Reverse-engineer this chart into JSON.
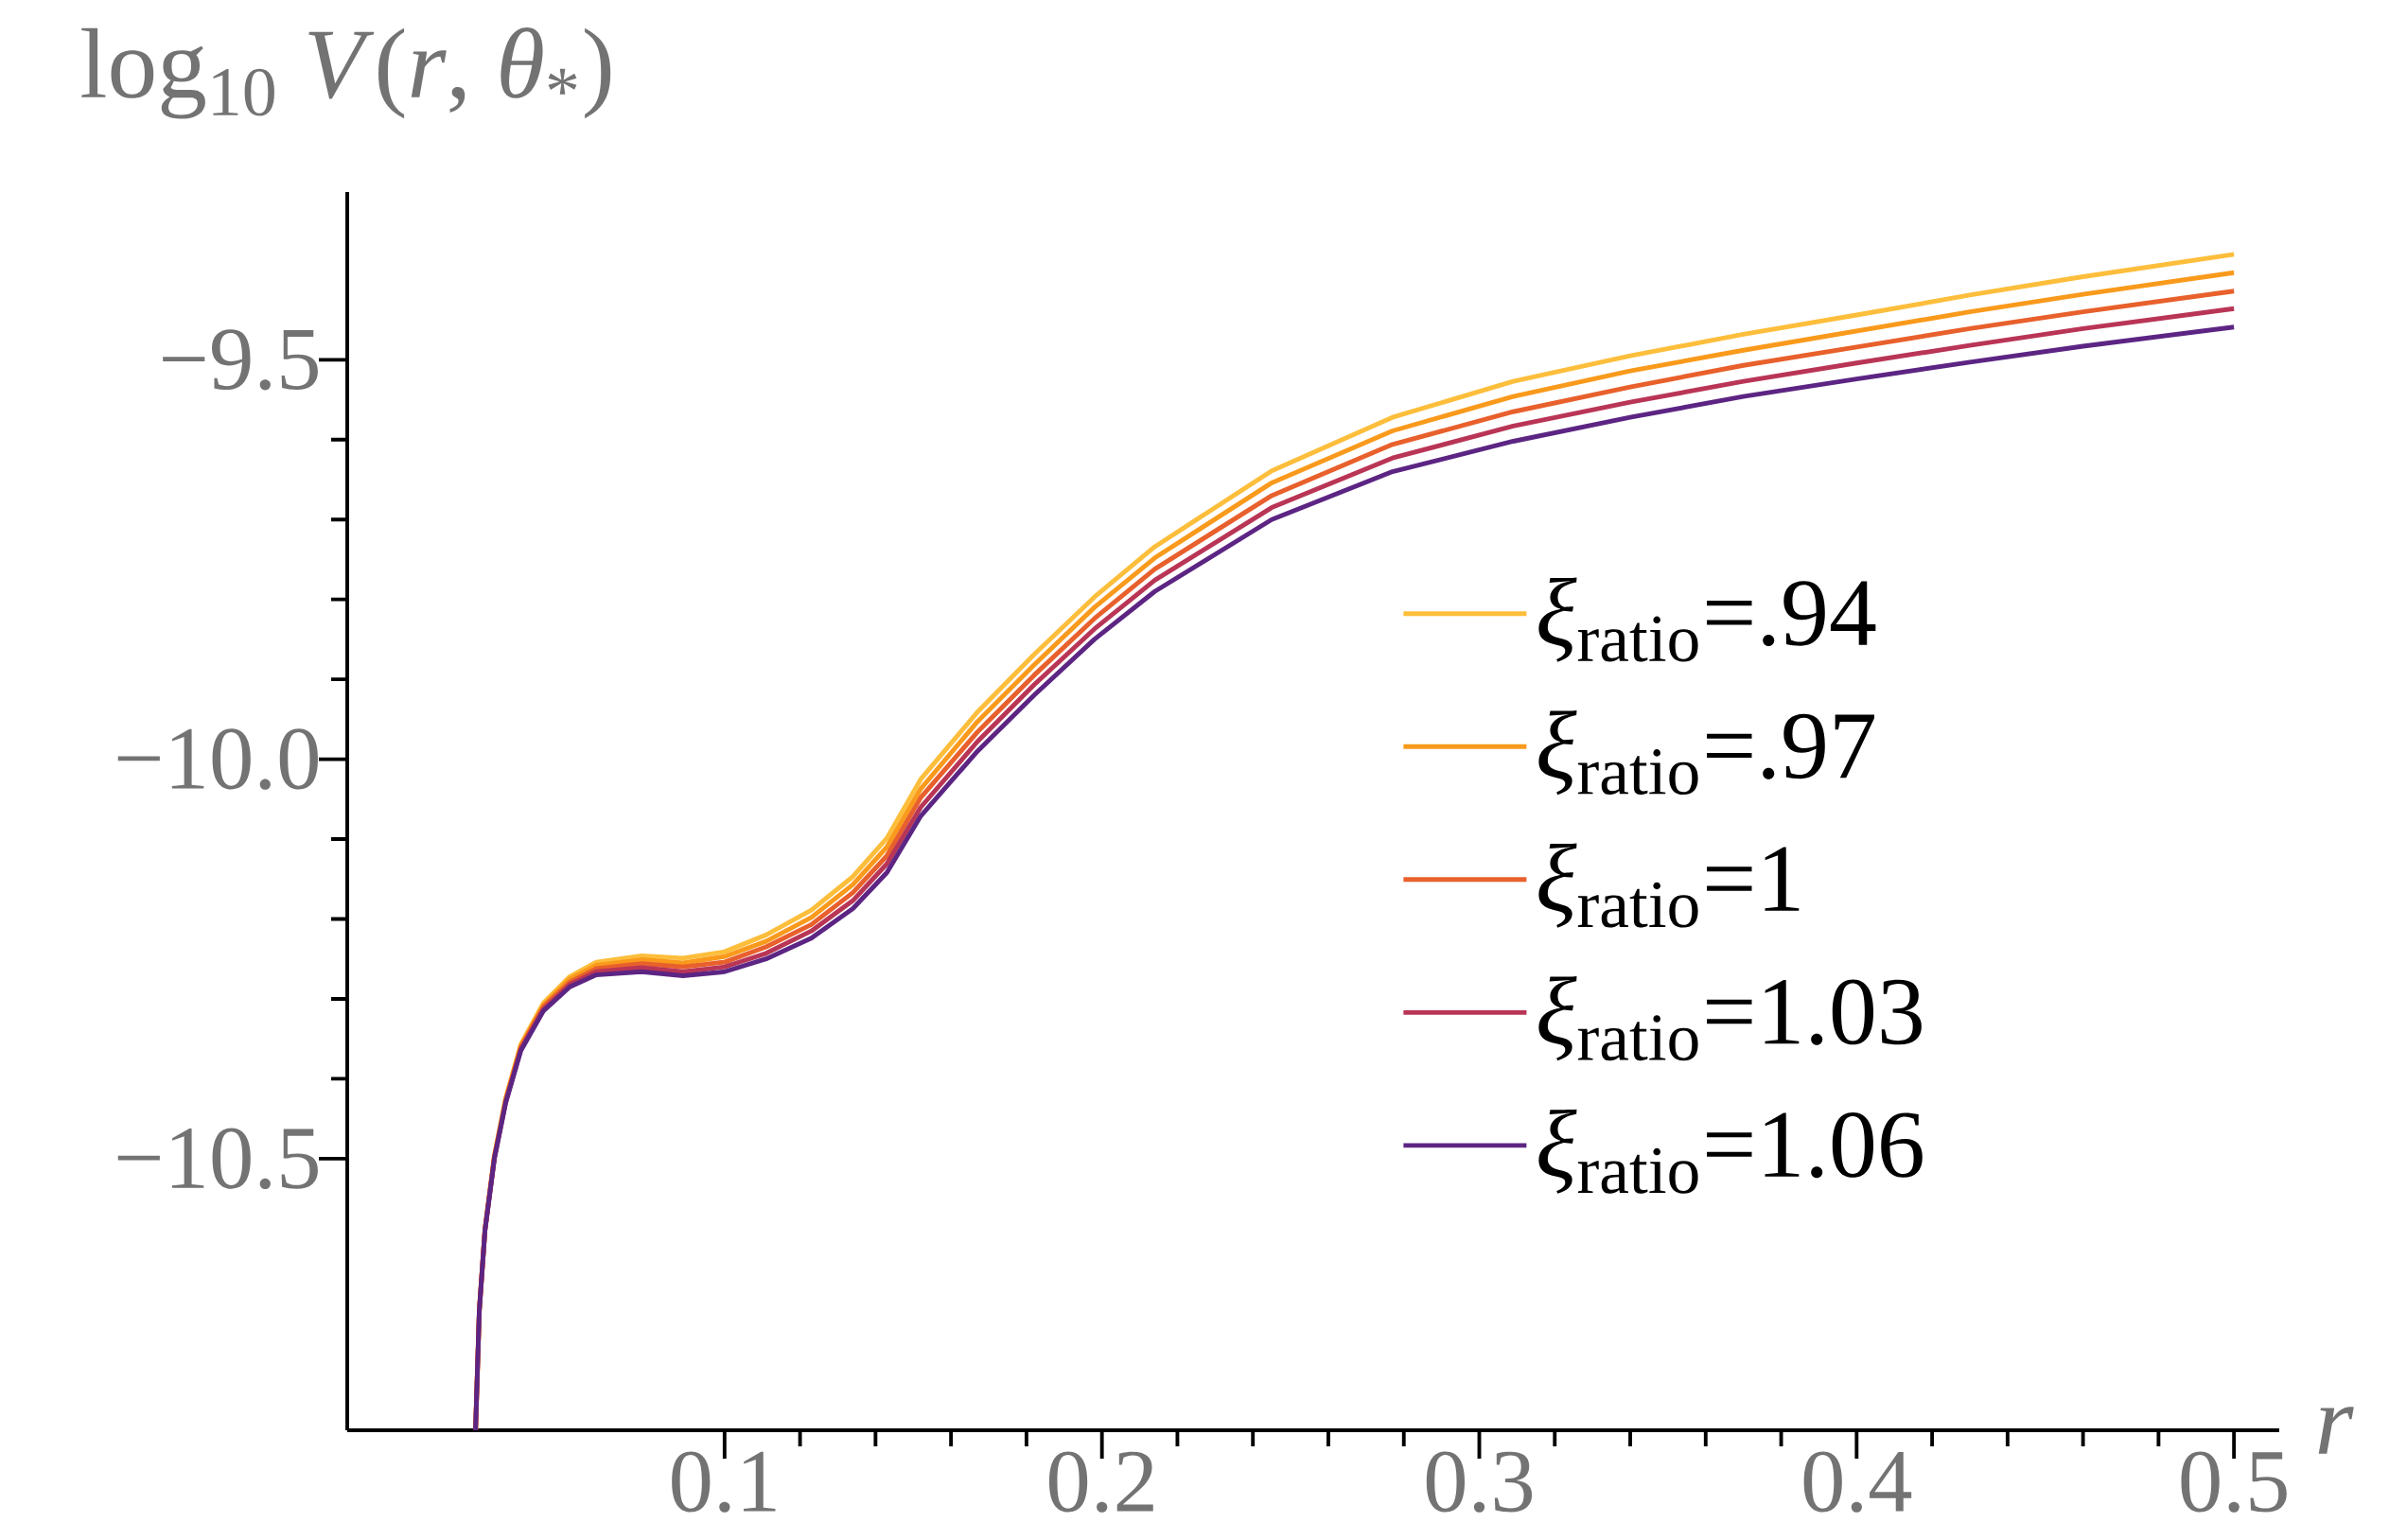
{
  "chart_data": {
    "type": "line",
    "ylabel": "log$_{10}$ *V*(*r*, *θ*$_{*}$)",
    "xlabel": "*r*",
    "x": [
      0.034,
      0.035,
      0.0365,
      0.039,
      0.042,
      0.046,
      0.052,
      0.059,
      0.066,
      0.078,
      0.089,
      0.1,
      0.111,
      0.123,
      0.134,
      0.143,
      0.152,
      0.167,
      0.182,
      0.198,
      0.214,
      0.245,
      0.277,
      0.309,
      0.34,
      0.37,
      0.4,
      0.43,
      0.46,
      0.5
    ],
    "xlim": [
      0,
      0.512
    ],
    "ylim": [
      -10.84,
      -9.29
    ],
    "xticks": [
      0.1,
      0.2,
      0.3,
      0.4,
      0.5
    ],
    "yticks": [
      {
        "value": -10.5,
        "label": "−10.5"
      },
      {
        "value": -10.0,
        "label": "−10.0"
      },
      {
        "value": -9.5,
        "label": "−9.5"
      }
    ],
    "legend": "right",
    "series": [
      {
        "name": "*ξ*$_{ratio}$=.94",
        "color": "#fdbe3c",
        "values": [
          -10.84,
          -10.69,
          -10.588,
          -10.496,
          -10.424,
          -10.357,
          -10.305,
          -10.272,
          -10.254,
          -10.246,
          -10.249,
          -10.241,
          -10.22,
          -10.189,
          -10.147,
          -10.099,
          -10.025,
          -9.941,
          -9.869,
          -9.797,
          -9.734,
          -9.639,
          -9.572,
          -9.527,
          -9.495,
          -9.468,
          -9.444,
          -9.419,
          -9.396,
          -9.368
        ]
      },
      {
        "name": "*ξ*$_{ratio}$=.97",
        "color": "#f99a1c",
        "values": [
          -10.84,
          -10.69,
          -10.589,
          -10.497,
          -10.426,
          -10.359,
          -10.308,
          -10.275,
          -10.258,
          -10.251,
          -10.255,
          -10.247,
          -10.228,
          -10.198,
          -10.157,
          -10.11,
          -10.037,
          -9.953,
          -9.882,
          -9.81,
          -9.748,
          -9.654,
          -9.589,
          -9.546,
          -9.514,
          -9.488,
          -9.464,
          -9.44,
          -9.418,
          -9.391
        ]
      },
      {
        "name": "*ξ*$_{ratio}$=1",
        "color": "#e8602c",
        "values": [
          -10.84,
          -10.69,
          -10.589,
          -10.498,
          -10.427,
          -10.361,
          -10.31,
          -10.279,
          -10.262,
          -10.256,
          -10.26,
          -10.254,
          -10.235,
          -10.207,
          -10.167,
          -10.121,
          -10.048,
          -9.966,
          -9.895,
          -9.824,
          -9.762,
          -9.67,
          -9.606,
          -9.565,
          -9.534,
          -9.507,
          -9.484,
          -9.461,
          -9.44,
          -9.414
        ]
      },
      {
        "name": "*ξ*$_{ratio}$=1.03",
        "color": "#b93556",
        "values": [
          -10.84,
          -10.69,
          -10.59,
          -10.499,
          -10.429,
          -10.363,
          -10.313,
          -10.282,
          -10.266,
          -10.261,
          -10.266,
          -10.26,
          -10.243,
          -10.215,
          -10.177,
          -10.131,
          -10.06,
          -9.978,
          -9.907,
          -9.837,
          -9.776,
          -9.685,
          -9.623,
          -9.583,
          -9.553,
          -9.527,
          -9.504,
          -9.482,
          -9.461,
          -9.436
        ]
      },
      {
        "name": "*ξ*$_{ratio}$=1.06",
        "color": "#5c2583",
        "values": [
          -10.84,
          -10.69,
          -10.59,
          -10.5,
          -10.43,
          -10.365,
          -10.315,
          -10.285,
          -10.27,
          -10.266,
          -10.271,
          -10.266,
          -10.25,
          -10.224,
          -10.187,
          -10.142,
          -10.071,
          -9.99,
          -9.92,
          -9.85,
          -9.79,
          -9.7,
          -9.64,
          -9.602,
          -9.572,
          -9.546,
          -9.524,
          -9.503,
          -9.483,
          -9.459
        ]
      }
    ]
  }
}
